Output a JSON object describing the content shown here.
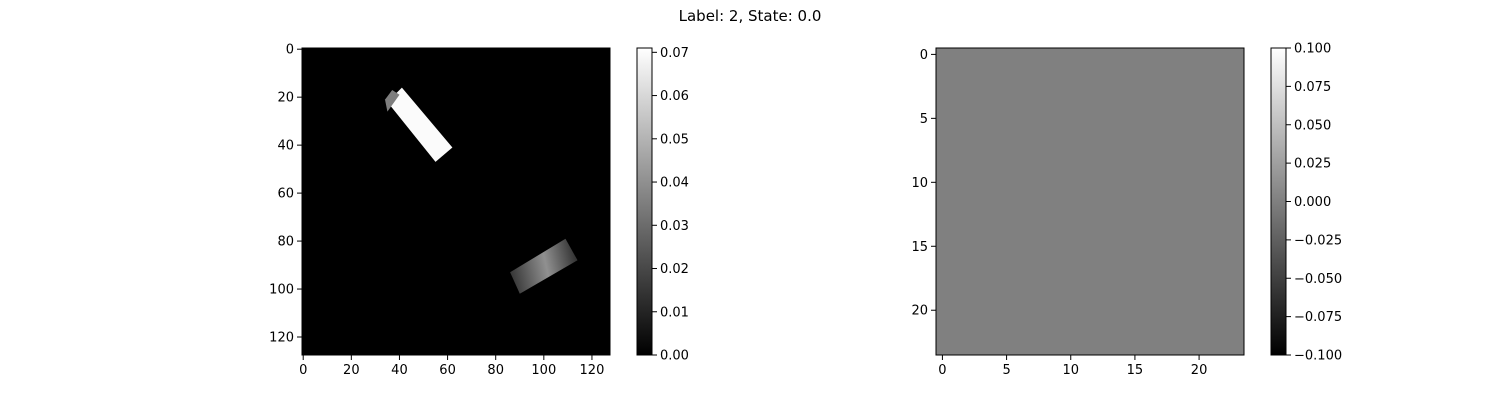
{
  "figure": {
    "title": "Label: 2, State: 0.0"
  },
  "chart_data": [
    {
      "type": "heatmap",
      "name": "left-image",
      "colormap": "gray",
      "image_size": [
        128,
        128
      ],
      "x_ticks": [
        "0",
        "20",
        "40",
        "60",
        "80",
        "100",
        "120"
      ],
      "y_ticks": [
        "0",
        "20",
        "40",
        "60",
        "80",
        "100",
        "120"
      ],
      "x_tick_values": [
        0,
        20,
        40,
        60,
        80,
        100,
        120
      ],
      "y_tick_values": [
        0,
        20,
        40,
        60,
        80,
        100,
        120
      ],
      "xlim": [
        -0.5,
        127.5
      ],
      "ylim": [
        127.5,
        -0.5
      ],
      "vmin": 0.0,
      "vmax": 0.071,
      "background_value": 0.0,
      "shapes": [
        {
          "kind": "bright-bar",
          "value": 0.07,
          "corners": [
            [
              35,
              22
            ],
            [
              41,
              16
            ],
            [
              62,
              41
            ],
            [
              55,
              47
            ]
          ]
        },
        {
          "kind": "gray-fragment",
          "value": 0.035,
          "corners": [
            [
              34,
              21
            ],
            [
              37,
              17
            ],
            [
              40,
              19
            ],
            [
              35,
              26
            ]
          ]
        },
        {
          "kind": "gradient-bar",
          "value_peak": 0.04,
          "value_edge": 0.015,
          "corners": [
            [
              86,
              93
            ],
            [
              109,
              79
            ],
            [
              114,
              88
            ],
            [
              90,
              102
            ]
          ]
        }
      ],
      "colorbar": {
        "ticks": [
          "0.00",
          "0.01",
          "0.02",
          "0.03",
          "0.04",
          "0.05",
          "0.06",
          "0.07"
        ],
        "tick_values": [
          0.0,
          0.01,
          0.02,
          0.03,
          0.04,
          0.05,
          0.06,
          0.07
        ],
        "range": [
          0.0,
          0.071
        ]
      }
    },
    {
      "type": "heatmap",
      "name": "right-image",
      "colormap": "gray",
      "image_size": [
        24,
        24
      ],
      "x_ticks": [
        "0",
        "5",
        "10",
        "15",
        "20"
      ],
      "y_ticks": [
        "0",
        "5",
        "10",
        "15",
        "20"
      ],
      "x_tick_values": [
        0,
        5,
        10,
        15,
        20
      ],
      "y_tick_values": [
        0,
        5,
        10,
        15,
        20
      ],
      "xlim": [
        -0.5,
        23.5
      ],
      "ylim": [
        23.5,
        -0.5
      ],
      "vmin": -0.1,
      "vmax": 0.1,
      "uniform_value": 0.0,
      "colorbar": {
        "ticks": [
          "0.100",
          "0.075",
          "0.050",
          "0.025",
          "0.000",
          "−0.025",
          "−0.050",
          "−0.075",
          "−0.100"
        ],
        "tick_values": [
          0.1,
          0.075,
          0.05,
          0.025,
          0.0,
          -0.025,
          -0.05,
          -0.075,
          -0.1
        ],
        "range": [
          -0.1,
          0.1
        ]
      }
    }
  ]
}
